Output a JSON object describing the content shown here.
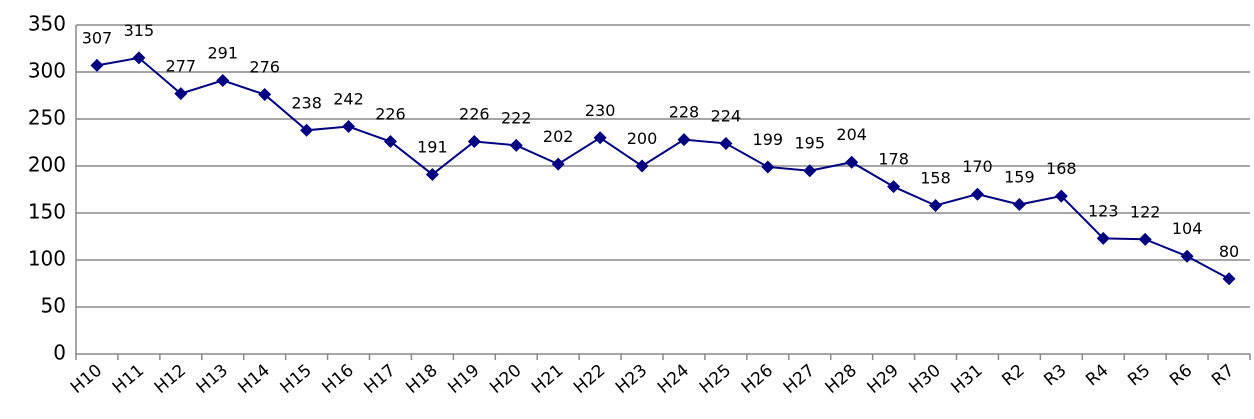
{
  "chart_data": {
    "type": "line",
    "categories": [
      "H10",
      "H11",
      "H12",
      "H13",
      "H14",
      "H15",
      "H16",
      "H17",
      "H18",
      "H19",
      "H20",
      "H21",
      "H22",
      "H23",
      "H24",
      "H25",
      "H26",
      "H27",
      "H28",
      "H29",
      "H30",
      "H31",
      "R2",
      "R3",
      "R4",
      "R5",
      "R6",
      "R7"
    ],
    "series": [
      {
        "color": "#000080",
        "values": [
          307,
          315,
          277,
          291,
          276,
          238,
          242,
          226,
          191,
          226,
          222,
          202,
          230,
          200,
          228,
          224,
          199,
          195,
          204,
          178,
          158,
          170,
          159,
          168,
          123,
          122,
          104,
          80
        ]
      }
    ],
    "ylim": [
      0,
      350
    ],
    "yticks": [
      0,
      50,
      100,
      150,
      200,
      250,
      300,
      350
    ],
    "grid": true
  }
}
